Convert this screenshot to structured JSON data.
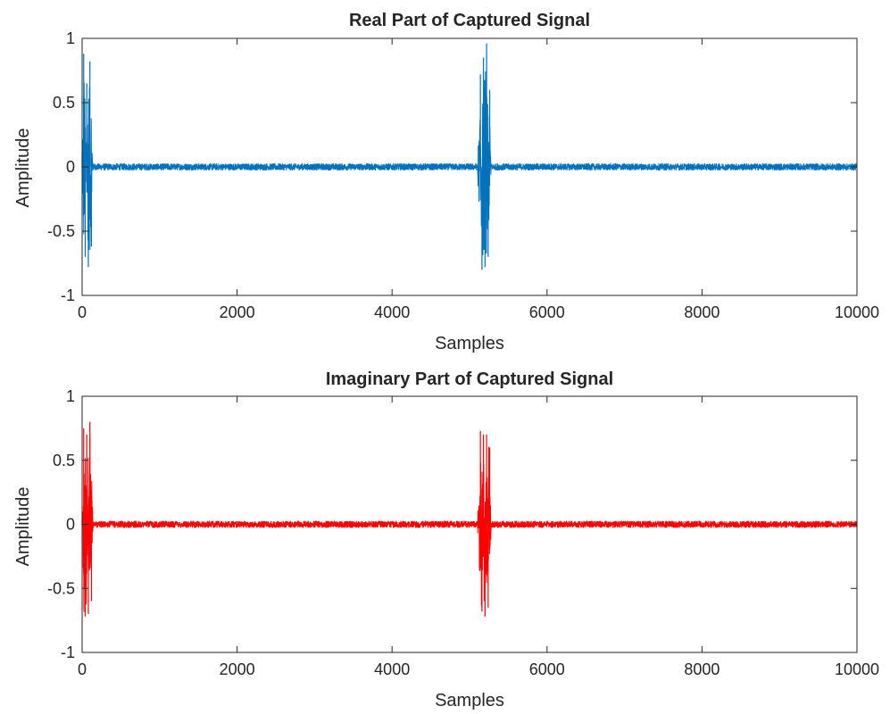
{
  "chart_data": [
    {
      "type": "line",
      "title": "Real Part of Captured Signal",
      "xlabel": "Samples",
      "ylabel": "Amplitude",
      "xlim": [
        0,
        10000
      ],
      "ylim": [
        -1,
        1
      ],
      "xticks": [
        0,
        2000,
        4000,
        6000,
        8000,
        10000
      ],
      "xtick_labels": [
        "0",
        "2000",
        "4000",
        "6000",
        "8000",
        "10000"
      ],
      "yticks": [
        -1,
        -0.5,
        0,
        0.5,
        1
      ],
      "ytick_labels": [
        "-1",
        "-0.5",
        "0",
        "0.5",
        "1"
      ],
      "grid": false,
      "color": "#0072BD",
      "series": [
        {
          "x": [
            0,
            20,
            40,
            60,
            80,
            100,
            120,
            140,
            500,
            1000,
            2000,
            3000,
            4000,
            5000,
            5100,
            5140,
            5160,
            5180,
            5200,
            5220,
            5240,
            5260,
            5280,
            6000,
            7000,
            8000,
            9000,
            10000
          ],
          "y": [
            0.1,
            0.88,
            -0.7,
            0.65,
            -0.78,
            0.82,
            -0.62,
            0.02,
            0.0,
            0.0,
            0.0,
            0.0,
            0.0,
            0.0,
            0.0,
            0.72,
            -0.8,
            0.85,
            -0.78,
            0.96,
            -0.7,
            0.6,
            0.0,
            0.0,
            0.0,
            0.0,
            0.0,
            0.0
          ]
        }
      ]
    },
    {
      "type": "line",
      "title": "Imaginary Part of Captured Signal",
      "xlabel": "Samples",
      "ylabel": "Amplitude",
      "xlim": [
        0,
        10000
      ],
      "ylim": [
        -1,
        1
      ],
      "xticks": [
        0,
        2000,
        4000,
        6000,
        8000,
        10000
      ],
      "xtick_labels": [
        "0",
        "2000",
        "4000",
        "6000",
        "8000",
        "10000"
      ],
      "yticks": [
        -1,
        -0.5,
        0,
        0.5,
        1
      ],
      "ytick_labels": [
        "-1",
        "-0.5",
        "0",
        "0.5",
        "1"
      ],
      "grid": false,
      "color": "#FF0000",
      "series": [
        {
          "x": [
            0,
            20,
            40,
            60,
            80,
            100,
            120,
            140,
            500,
            1000,
            2000,
            3000,
            4000,
            5000,
            5100,
            5140,
            5160,
            5180,
            5200,
            5220,
            5240,
            5260,
            5280,
            6000,
            7000,
            8000,
            9000,
            10000
          ],
          "y": [
            0.05,
            0.75,
            -0.72,
            0.7,
            -0.7,
            0.8,
            -0.6,
            0.02,
            0.0,
            0.0,
            0.0,
            0.0,
            0.0,
            0.0,
            0.0,
            0.73,
            -0.68,
            0.7,
            -0.72,
            0.7,
            -0.65,
            0.6,
            0.0,
            0.0,
            0.0,
            0.0,
            0.0,
            0.0
          ]
        }
      ]
    }
  ]
}
